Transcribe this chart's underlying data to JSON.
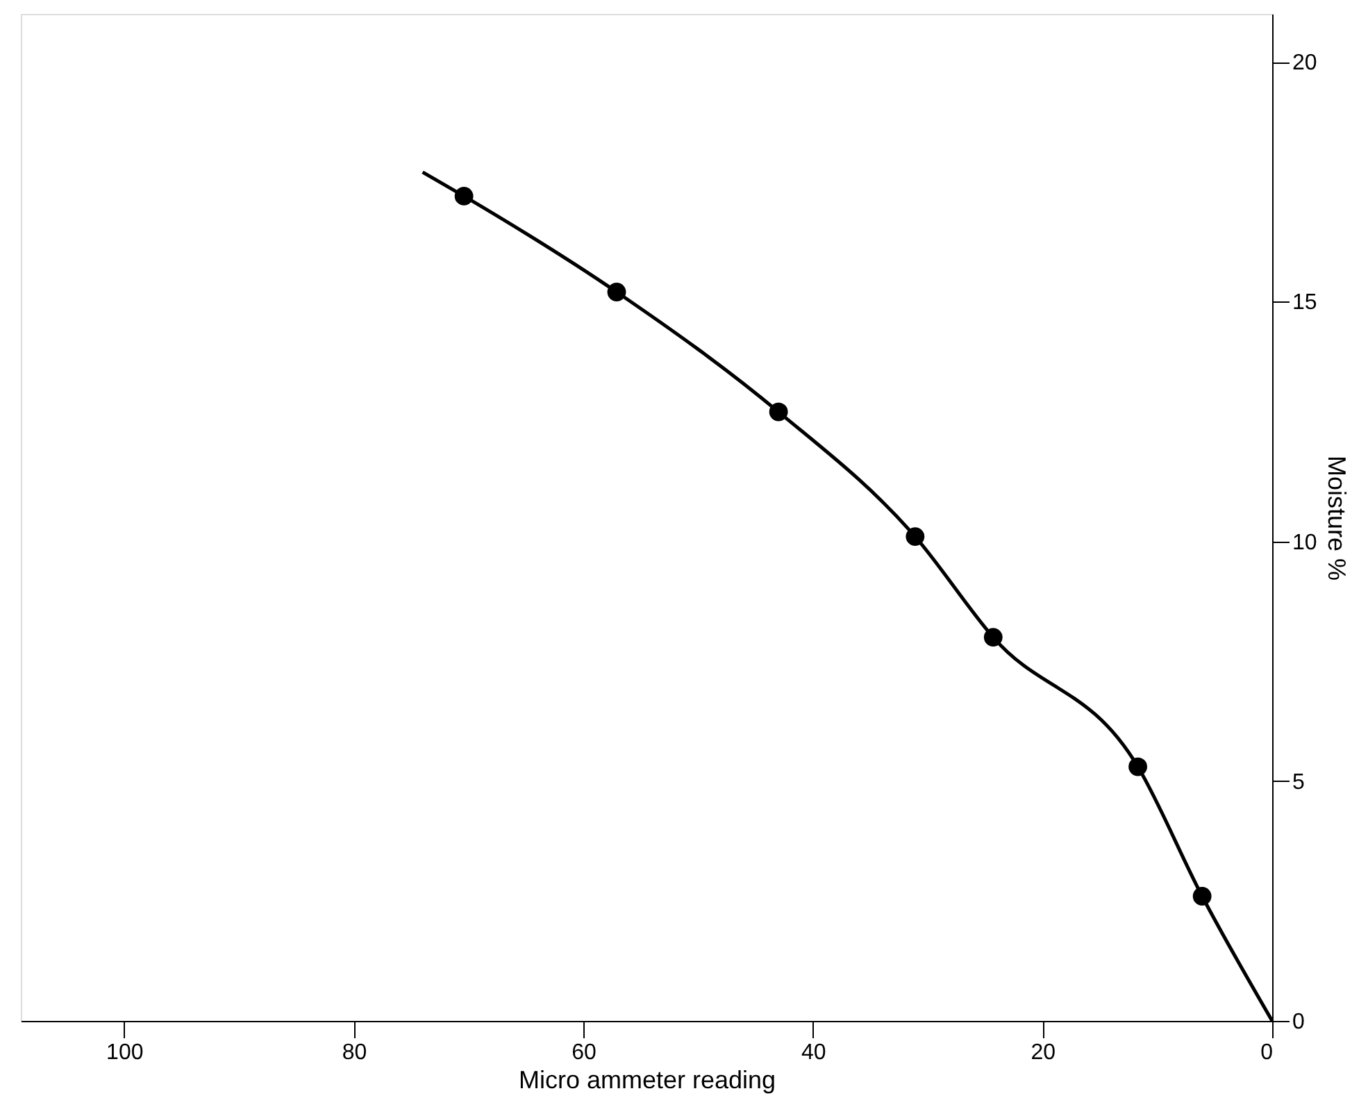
{
  "chart_data": {
    "type": "scatter",
    "xlabel": "Micro ammeter reading",
    "ylabel": "Moisture %",
    "xlim": [
      109,
      0
    ],
    "xticks": [
      100,
      80,
      60,
      40,
      20,
      0
    ],
    "ylim": [
      0,
      21
    ],
    "yticks": [
      0,
      5,
      10,
      15,
      20
    ],
    "grid": false,
    "legend": false,
    "series": [
      {
        "marker": "circle",
        "color": "#000000",
        "x": [
          6.1,
          11.7,
          24.3,
          31.1,
          43.0,
          57.1,
          70.4
        ],
        "values": [
          2.6,
          5.3,
          8.0,
          10.1,
          12.7,
          15.2,
          17.2
        ]
      },
      {
        "type": "line",
        "marker": "none",
        "color": "#000000",
        "line_style": "solid",
        "x": [
          0,
          6.1,
          11.7,
          24.3,
          31.1,
          43.0,
          57.1,
          70.4,
          74
        ],
        "values": [
          0,
          2.6,
          5.3,
          8.0,
          10.1,
          12.7,
          15.2,
          17.2,
          17.7
        ]
      }
    ]
  }
}
